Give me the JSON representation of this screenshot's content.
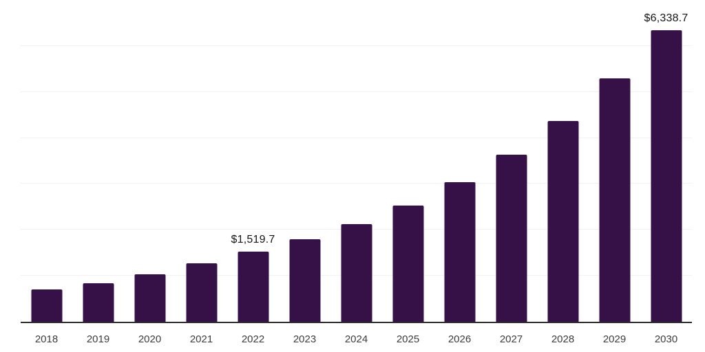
{
  "chart_data": {
    "type": "bar",
    "title": "",
    "xlabel": "",
    "ylabel": "",
    "categories": [
      "2018",
      "2019",
      "2020",
      "2021",
      "2022",
      "2023",
      "2024",
      "2025",
      "2026",
      "2027",
      "2028",
      "2029",
      "2030"
    ],
    "values": [
      700,
      840,
      1030,
      1270,
      1519.7,
      1790,
      2120,
      2530,
      3030,
      3640,
      4370,
      5290,
      6338.7
    ],
    "point_labels": [
      "",
      "",
      "",
      "",
      "$1,519.7",
      "",
      "",
      "",
      "",
      "",
      "",
      "",
      "$6,338.7"
    ],
    "ylim": [
      0,
      7000
    ],
    "gridline_step": 1000,
    "grid": "horizontal",
    "legend": "none",
    "y_axis_labels": "none",
    "colors": {
      "bar": "#361148",
      "gridline": "#f1f1f4",
      "axis_line": "#2b2b2b",
      "tick_label": "#3c3c3c",
      "data_label": "#141414",
      "background": "#ffffff"
    }
  }
}
